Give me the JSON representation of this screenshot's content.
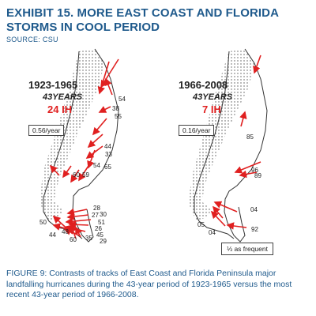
{
  "header": {
    "title": "EXHIBIT 15. MORE EAST COAST AND FLORIDA STORMS IN COOL PERIOD",
    "source": "SOURCE: CSU"
  },
  "colors": {
    "title": "#1f5a8c",
    "track": "#e02020",
    "count": "#e02020"
  },
  "panels": [
    {
      "period": "1923-1965",
      "years_label": "43YEARS",
      "count_label": "24 IH",
      "rate": "0.56/year",
      "year_labels": [
        "54",
        "38",
        "55",
        "44",
        "33",
        "54",
        "65",
        "59",
        "60",
        "28",
        "27",
        "30",
        "51",
        "26",
        "45",
        "50",
        "48",
        "44",
        "60",
        "35",
        "29"
      ]
    },
    {
      "period": "1966-2008",
      "years_label": "43YEARS",
      "count_label": "7 IH",
      "rate": "0.16/year",
      "note": "⅓ as frequent",
      "year_labels": [
        "85",
        "96",
        "89",
        "04",
        "05",
        "04",
        "92"
      ]
    }
  ],
  "caption": "FIGURE 9: Contrasts of tracks of East Coast and Florida Peninsula major landfalling hurricanes during the 43-year period of 1923-1965 versus the most recent 43-year period of 1966-2008."
}
